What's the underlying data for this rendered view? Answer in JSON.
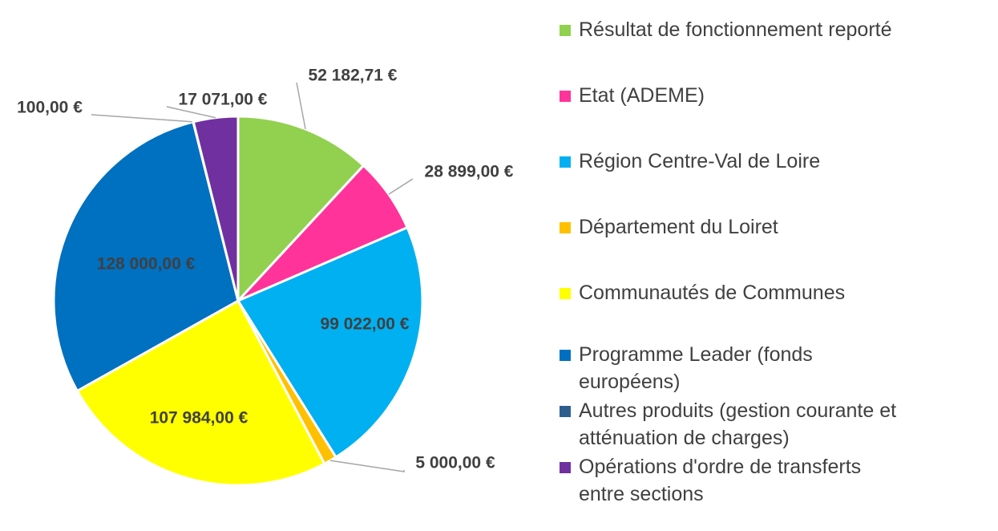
{
  "chart_data": {
    "type": "pie",
    "categories": [
      "Résultat de fonctionnement reporté",
      "Etat (ADEME)",
      "Région Centre-Val de Loire",
      "Département du Loiret",
      "Communautés de Communes",
      "Programme Leader (fonds européens)",
      "Autres produits (gestion courante et atténuation de charges)",
      "Opérations d'ordre de transferts entre sections"
    ],
    "values": [
      52182.71,
      28899,
      99022,
      5000,
      107984,
      128000,
      100,
      17071
    ],
    "value_labels": [
      "52 182,71 €",
      "28 899,00 €",
      "99 022,00 €",
      "5 000,00 €",
      "107 984,00 €",
      "128 000,00 €",
      "100,00 €",
      "17 071,00 €"
    ],
    "colors": [
      "#92d050",
      "#ff3399",
      "#00b0f0",
      "#ffc000",
      "#ffff00",
      "#0070c0",
      "#2e5e8e",
      "#7030a0"
    ],
    "legend": "right"
  }
}
